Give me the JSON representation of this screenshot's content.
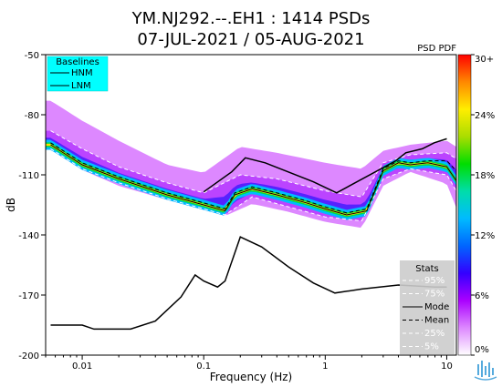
{
  "chart_data": {
    "type": "heatmap",
    "title_line1": "YM.NJ292.--.EH1 : 1414 PSDs",
    "title_line2": "07-JUL-2021 / 05-AUG-2021",
    "xlabel": "Frequency (Hz)",
    "ylabel": "dB",
    "x_scale": "log",
    "xlim": [
      0.005,
      12
    ],
    "ylim": [
      -200,
      -50
    ],
    "x_ticks": [
      {
        "value": 0.01,
        "label": "0.01"
      },
      {
        "value": 0.1,
        "label": "0.1"
      },
      {
        "value": 1,
        "label": "1"
      },
      {
        "value": 10,
        "label": "10"
      }
    ],
    "y_ticks": [
      {
        "value": -50,
        "label": "-50"
      },
      {
        "value": -80,
        "label": "-80"
      },
      {
        "value": -110,
        "label": "-110"
      },
      {
        "value": -140,
        "label": "-140"
      },
      {
        "value": -170,
        "label": "-170"
      },
      {
        "value": -200,
        "label": "-200"
      }
    ],
    "grid": false,
    "pdf_label": "PSD PDF",
    "colorbar": {
      "stops": [
        "#ffffff",
        "#dd88ff",
        "#aa00ff",
        "#3300ff",
        "#0066ff",
        "#00bbff",
        "#00ddaa",
        "#00dd00",
        "#aadd00",
        "#ffee00",
        "#ff8800",
        "#ff0000"
      ],
      "ticks": [
        {
          "value": 30,
          "label": "30+"
        },
        {
          "value": 24,
          "label": "24%"
        },
        {
          "value": 18,
          "label": "18%"
        },
        {
          "value": 12,
          "label": "12%"
        },
        {
          "value": 6,
          "label": "6%"
        },
        {
          "value": 0,
          "label": "0%"
        }
      ]
    },
    "baselines_legend": {
      "title": "Baselines",
      "entries": [
        {
          "name": "HNM",
          "color": "#000000"
        },
        {
          "name": "LNM",
          "color": "#000000"
        }
      ],
      "background": "#00ffff"
    },
    "stats_legend": {
      "title": "Stats",
      "entries": [
        {
          "name": "95%",
          "style": "dashed-white"
        },
        {
          "name": "75%",
          "style": "dashed-white"
        },
        {
          "name": "Mode",
          "style": "solid-black"
        },
        {
          "name": "Mean",
          "style": "dashed-black"
        },
        {
          "name": "25%",
          "style": "dashed-white"
        },
        {
          "name": "5%",
          "style": "dashed-white"
        }
      ],
      "background": "#cccccc"
    },
    "series": [
      {
        "name": "HNM",
        "x": [
          0.1,
          0.17,
          0.22,
          0.32,
          0.8,
          1.24,
          3.8,
          4.6,
          6.3,
          7.9,
          10
        ],
        "y": [
          -118.5,
          -108.5,
          -101.5,
          -104,
          -113.5,
          -119,
          -103,
          -99,
          -97,
          -94,
          -92
        ]
      },
      {
        "name": "LNM",
        "x": [
          0.0055,
          0.01,
          0.0125,
          0.025,
          0.04,
          0.065,
          0.085,
          0.1,
          0.13,
          0.15,
          0.2,
          0.3,
          0.5,
          0.8,
          1.2,
          2,
          4,
          8,
          10
        ],
        "y": [
          -185,
          -185,
          -187,
          -187,
          -183,
          -171,
          -160,
          -163,
          -166,
          -163,
          -141,
          -146,
          -156,
          -164,
          -169,
          -167,
          -165,
          -166,
          -166
        ]
      },
      {
        "name": "mode",
        "x": [
          0.0055,
          0.01,
          0.02,
          0.05,
          0.1,
          0.15,
          0.18,
          0.25,
          0.4,
          0.7,
          1,
          1.5,
          2.2,
          3,
          4,
          5,
          7,
          10,
          12
        ],
        "y": [
          -95,
          -105,
          -112,
          -120,
          -125,
          -128,
          -120,
          -117,
          -120,
          -124,
          -127,
          -130,
          -128,
          -108,
          -104,
          -105,
          -104,
          -106,
          -113
        ]
      },
      {
        "name": "mean",
        "x": [
          0.0055,
          0.01,
          0.02,
          0.05,
          0.1,
          0.15,
          0.18,
          0.25,
          0.4,
          0.7,
          1,
          1.5,
          2.2,
          3,
          4,
          5,
          7,
          10,
          12
        ],
        "y": [
          -94,
          -104,
          -111,
          -119,
          -124,
          -127,
          -119,
          -116,
          -119,
          -123,
          -126,
          -129,
          -127,
          -107,
          -103,
          -104,
          -103,
          -103,
          -108
        ]
      },
      {
        "name": "p95",
        "x": [
          0.0055,
          0.01,
          0.02,
          0.05,
          0.1,
          0.2,
          0.4,
          1,
          2,
          3,
          5,
          10,
          12
        ],
        "y": [
          -72,
          -82,
          -92,
          -104,
          -108,
          -95,
          -98,
          -103,
          -106,
          -97,
          -94,
          -92,
          -95
        ]
      },
      {
        "name": "p75",
        "x": [
          0.0055,
          0.01,
          0.02,
          0.05,
          0.1,
          0.2,
          0.4,
          1,
          2,
          3,
          5,
          10,
          12
        ],
        "y": [
          -88,
          -97,
          -106,
          -114,
          -119,
          -110,
          -112,
          -118,
          -121,
          -104,
          -100,
          -99,
          -102
        ]
      },
      {
        "name": "p25",
        "x": [
          0.0055,
          0.01,
          0.02,
          0.05,
          0.1,
          0.15,
          0.25,
          0.5,
          1,
          2,
          3,
          5,
          10,
          12
        ],
        "y": [
          -97,
          -107,
          -114,
          -122,
          -127,
          -130,
          -121,
          -126,
          -131,
          -133,
          -112,
          -107,
          -110,
          -118
        ]
      },
      {
        "name": "p5",
        "x": [
          0.0055,
          0.01,
          0.02,
          0.05,
          0.1,
          0.15,
          0.25,
          0.5,
          1,
          2,
          3,
          5,
          10,
          12
        ],
        "y": [
          -99,
          -109,
          -117,
          -124,
          -129,
          -132,
          -126,
          -130,
          -135,
          -138,
          -117,
          -110,
          -116,
          -128
        ]
      }
    ]
  }
}
